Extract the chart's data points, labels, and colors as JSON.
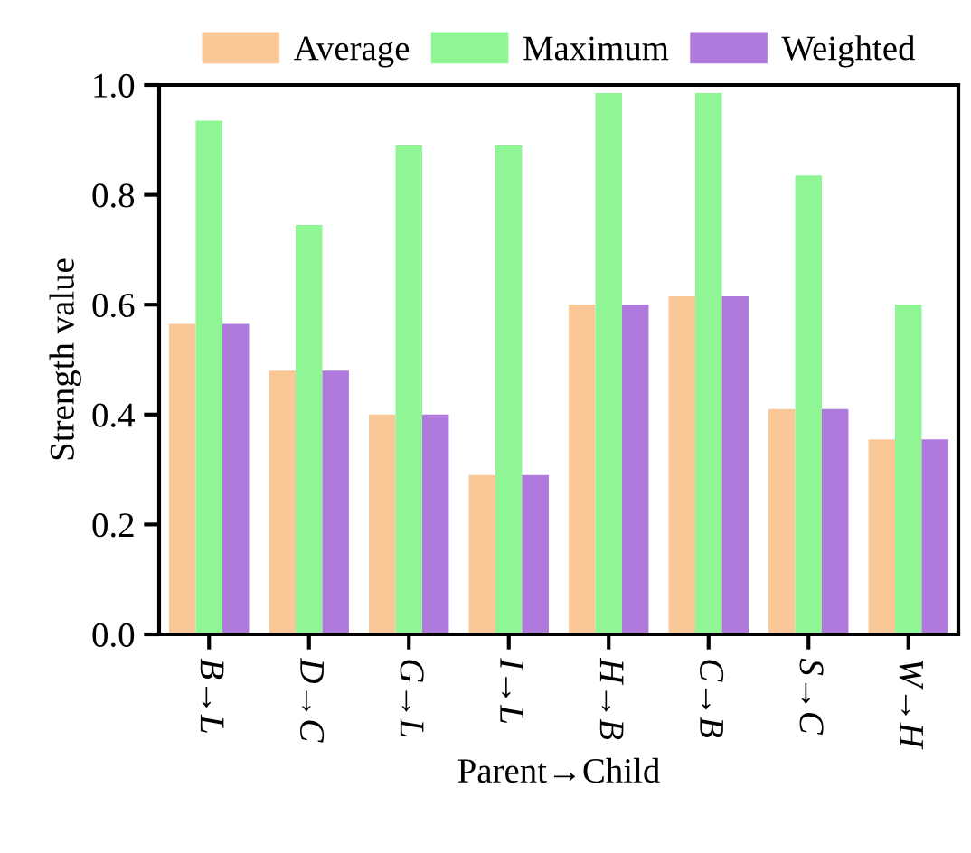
{
  "chart_data": {
    "type": "bar",
    "xlabel": "Parent→Child",
    "ylabel": "Strength value",
    "categories": [
      "B→L",
      "D→C",
      "G→L",
      "I→L",
      "H→B",
      "C→B",
      "S→C",
      "W→H"
    ],
    "series": [
      {
        "name": "Average",
        "color": "#f9c896",
        "values": [
          0.565,
          0.48,
          0.4,
          0.29,
          0.6,
          0.615,
          0.41,
          0.355
        ]
      },
      {
        "name": "Maximum",
        "color": "#8ff595",
        "values": [
          0.935,
          0.745,
          0.89,
          0.89,
          0.985,
          0.985,
          0.835,
          0.6
        ]
      },
      {
        "name": "Weighted",
        "color": "#b07adc",
        "values": [
          0.565,
          0.48,
          0.4,
          0.29,
          0.6,
          0.615,
          0.41,
          0.355
        ]
      }
    ],
    "ylim": [
      0,
      1.0
    ],
    "yticks": [
      {
        "value": 0,
        "label": "0.0"
      },
      {
        "value": 0.2,
        "label": "0.2"
      },
      {
        "value": 0.4,
        "label": "0.4"
      },
      {
        "value": 0.6,
        "label": "0.6"
      },
      {
        "value": 0.8,
        "label": "0.8"
      },
      {
        "value": 1.0,
        "label": "1.0"
      }
    ],
    "legend": "top",
    "grid": false
  }
}
